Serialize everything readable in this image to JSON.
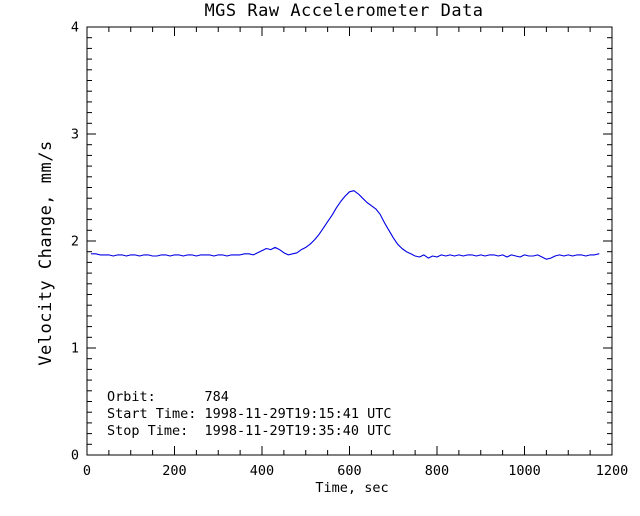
{
  "colors": {
    "line": "#0000e6",
    "axis": "#000000",
    "background": "#ffffff"
  },
  "annotations": {
    "lines": [
      "Orbit:      784",
      "Start Time: 1998-11-29T19:15:41 UTC",
      "Stop Time:  1998-11-29T19:35:40 UTC"
    ]
  },
  "chart_data": {
    "type": "line",
    "title": "MGS Raw Accelerometer Data",
    "xlabel": "Time, sec",
    "ylabel": "Velocity Change, mm/s",
    "xlim": [
      0,
      1200
    ],
    "ylim": [
      0,
      4
    ],
    "x_tick_labels": [
      "0",
      "200",
      "400",
      "600",
      "800",
      "1000",
      "1200"
    ],
    "x_major_ticks": [
      0,
      200,
      400,
      600,
      800,
      1000,
      1200
    ],
    "x_minor_step": 50,
    "y_tick_labels": [
      "0",
      "1",
      "2",
      "3",
      "4"
    ],
    "y_major_ticks": [
      0,
      1,
      2,
      3,
      4
    ],
    "y_minor_step": 0.1,
    "grid": false,
    "legend": false,
    "series": [
      {
        "name": "velocity_change",
        "x": [
          10,
          20,
          30,
          40,
          50,
          60,
          70,
          80,
          90,
          100,
          110,
          120,
          130,
          140,
          150,
          160,
          170,
          180,
          190,
          200,
          210,
          220,
          230,
          240,
          250,
          260,
          270,
          280,
          290,
          300,
          310,
          320,
          330,
          340,
          350,
          360,
          370,
          380,
          390,
          400,
          410,
          420,
          430,
          440,
          450,
          460,
          470,
          480,
          490,
          500,
          510,
          520,
          530,
          540,
          550,
          560,
          570,
          580,
          590,
          600,
          610,
          620,
          630,
          640,
          650,
          660,
          670,
          680,
          690,
          700,
          710,
          720,
          730,
          740,
          750,
          760,
          770,
          780,
          790,
          800,
          810,
          820,
          830,
          840,
          850,
          860,
          870,
          880,
          890,
          900,
          910,
          920,
          930,
          940,
          950,
          960,
          970,
          980,
          990,
          1000,
          1010,
          1020,
          1030,
          1040,
          1050,
          1060,
          1070,
          1080,
          1090,
          1100,
          1110,
          1120,
          1130,
          1140,
          1150,
          1160,
          1170
        ],
        "y": [
          1.88,
          1.88,
          1.87,
          1.87,
          1.87,
          1.86,
          1.87,
          1.87,
          1.86,
          1.87,
          1.87,
          1.86,
          1.87,
          1.87,
          1.86,
          1.86,
          1.87,
          1.87,
          1.86,
          1.87,
          1.87,
          1.86,
          1.87,
          1.87,
          1.86,
          1.87,
          1.87,
          1.87,
          1.86,
          1.87,
          1.87,
          1.86,
          1.87,
          1.87,
          1.87,
          1.88,
          1.88,
          1.87,
          1.89,
          1.91,
          1.93,
          1.92,
          1.94,
          1.92,
          1.89,
          1.87,
          1.88,
          1.89,
          1.92,
          1.94,
          1.97,
          2.01,
          2.06,
          2.12,
          2.18,
          2.24,
          2.31,
          2.37,
          2.42,
          2.46,
          2.47,
          2.44,
          2.4,
          2.36,
          2.33,
          2.3,
          2.25,
          2.17,
          2.1,
          2.03,
          1.97,
          1.93,
          1.9,
          1.88,
          1.86,
          1.85,
          1.87,
          1.84,
          1.86,
          1.85,
          1.87,
          1.86,
          1.87,
          1.86,
          1.87,
          1.86,
          1.87,
          1.87,
          1.86,
          1.87,
          1.86,
          1.87,
          1.87,
          1.86,
          1.87,
          1.85,
          1.87,
          1.86,
          1.85,
          1.87,
          1.86,
          1.86,
          1.87,
          1.85,
          1.83,
          1.84,
          1.86,
          1.87,
          1.86,
          1.87,
          1.86,
          1.87,
          1.87,
          1.86,
          1.87,
          1.87,
          1.88
        ]
      }
    ]
  }
}
